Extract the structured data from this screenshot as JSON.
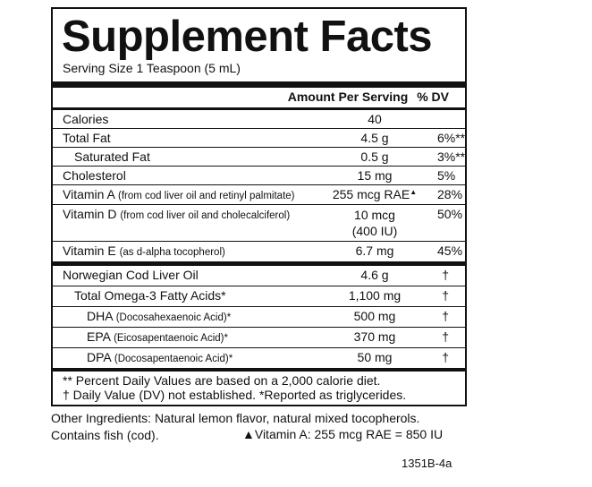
{
  "title": "Supplement Facts",
  "serving_size": "Serving Size 1 Teaspoon (5 mL)",
  "header": {
    "amount": "Amount Per Serving",
    "dv": "% DV"
  },
  "rows": [
    {
      "name": "Calories",
      "amount": "40"
    },
    {
      "name": "Total Fat",
      "amount": "4.5 g",
      "dv": "6%**"
    },
    {
      "name": "Saturated Fat",
      "amount": "0.5 g",
      "dv": "3%**"
    },
    {
      "name": "Cholesterol",
      "amount": "15 mg",
      "dv": "5%"
    },
    {
      "name": "Vitamin A",
      "note": "(from cod liver oil and retinyl palmitate)",
      "amount": "255 mcg RAE",
      "amount_mark": "▲",
      "dv": "28%"
    },
    {
      "name": "Vitamin D",
      "note": "(from cod liver oil and cholecalciferol)",
      "amount": "10 mcg",
      "amount_2": "(400 IU)",
      "dv": "50%"
    },
    {
      "name": "Vitamin E",
      "note": "(as d-alpha tocopherol)",
      "amount": "6.7 mg",
      "dv": "45%"
    },
    {
      "name": "Norwegian Cod Liver Oil",
      "amount": "4.6 g",
      "dv": "†"
    },
    {
      "name": "Total Omega-3 Fatty Acids*",
      "amount": "1,100 mg",
      "dv": "†"
    },
    {
      "name": "DHA",
      "note": "(Docosahexaenoic Acid)*",
      "amount": "500 mg",
      "dv": "†"
    },
    {
      "name": "EPA",
      "note": "(Eicosapentaenoic Acid)*",
      "amount": "370 mg",
      "dv": "†"
    },
    {
      "name": "DPA",
      "note": "(Docosapentaenoic Acid)*",
      "amount": "50 mg",
      "dv": "†"
    }
  ],
  "footnotes": [
    "** Percent Daily Values are based on a 2,000 calorie diet.",
    "† Daily Value (DV) not established. *Reported as triglycerides."
  ],
  "other_ingredients": "Other Ingredients: Natural lemon flavor, natural mixed tocopherols.",
  "contains": "Contains fish (cod).",
  "vitamin_a_note": "▲Vitamin A: 255 mcg RAE = 850 IU",
  "code": "1351B-4a"
}
